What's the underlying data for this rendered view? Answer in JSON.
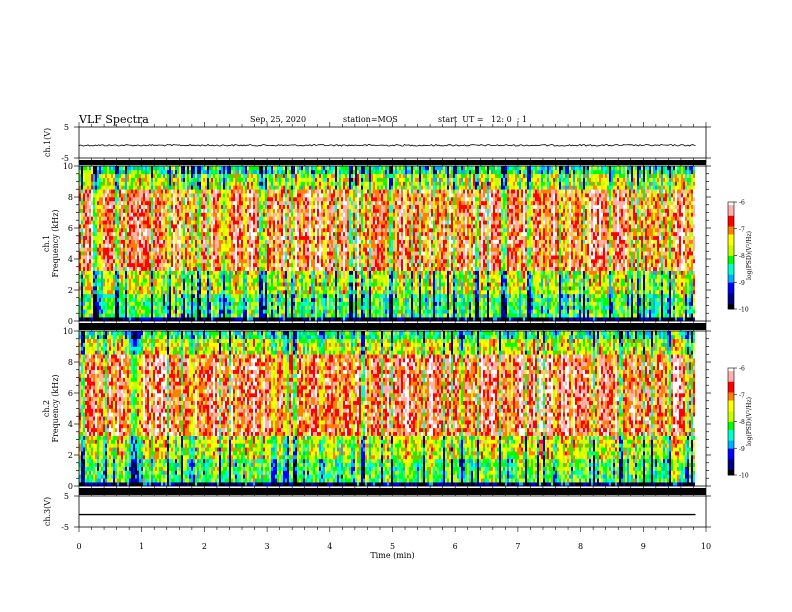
{
  "header": {
    "title": "VLF Spectra",
    "date": "Sep. 25, 2020",
    "station": "station=MOS",
    "start": "start  UT =   12: 0  : 1"
  },
  "colors": {
    "scale": [
      "#000000",
      "#000080",
      "#0000ff",
      "#00b0ff",
      "#00ffcc",
      "#00ff00",
      "#c8ff00",
      "#ffff00",
      "#ff8000",
      "#ff0000",
      "#ffb0b0",
      "#ffffff"
    ]
  },
  "chart_data": [
    {
      "type": "line",
      "name": "ch1-waveform",
      "ylabel": "ch.1(V)",
      "ylim": [
        -5,
        5
      ],
      "yticks": [
        "5",
        "-5"
      ],
      "xlim": [
        0,
        10
      ],
      "approx_level": -0.9
    },
    {
      "type": "heatmap",
      "name": "ch1-spectrogram",
      "ylabel": "ch.1\nFrequency (kHz)",
      "ylabel_line1": "ch.1",
      "ylabel_line2": "Frequency (kHz)",
      "ylim": [
        0,
        10
      ],
      "yticks": [
        "0",
        "2",
        "4",
        "6",
        "8",
        "10"
      ],
      "xlim": [
        0,
        10
      ],
      "data_end_min": 9.85,
      "colorbar": {
        "label": "log(PSD)(V²/Hz)",
        "range": [
          -10,
          -6
        ],
        "ticks": [
          "-6",
          "-7",
          "-8",
          "-9",
          "-10"
        ]
      }
    },
    {
      "type": "heatmap",
      "name": "ch2-spectrogram",
      "ylabel": "ch.2\nFrequency (kHz)",
      "ylabel_line1": "ch.2",
      "ylabel_line2": "Frequency (kHz)",
      "ylim": [
        0,
        10
      ],
      "yticks": [
        "0",
        "2",
        "4",
        "6",
        "8",
        "10"
      ],
      "xlim": [
        0,
        10
      ],
      "data_end_min": 9.85,
      "colorbar": {
        "label": "log(PSD)(V²/Hz)",
        "range": [
          -10,
          -6
        ],
        "ticks": [
          "-6",
          "-7",
          "-8",
          "-9",
          "-10"
        ]
      }
    },
    {
      "type": "line",
      "name": "ch3-waveform",
      "ylabel": "ch.3(V)",
      "ylim": [
        -5,
        5
      ],
      "yticks": [
        "5",
        "-5"
      ],
      "xlim": [
        0,
        10
      ],
      "approx_level": -1.0
    }
  ],
  "xaxis": {
    "label": "Time  (min)",
    "ticks": [
      "0",
      "1",
      "2",
      "3",
      "4",
      "5",
      "6",
      "7",
      "8",
      "9",
      "10"
    ]
  }
}
